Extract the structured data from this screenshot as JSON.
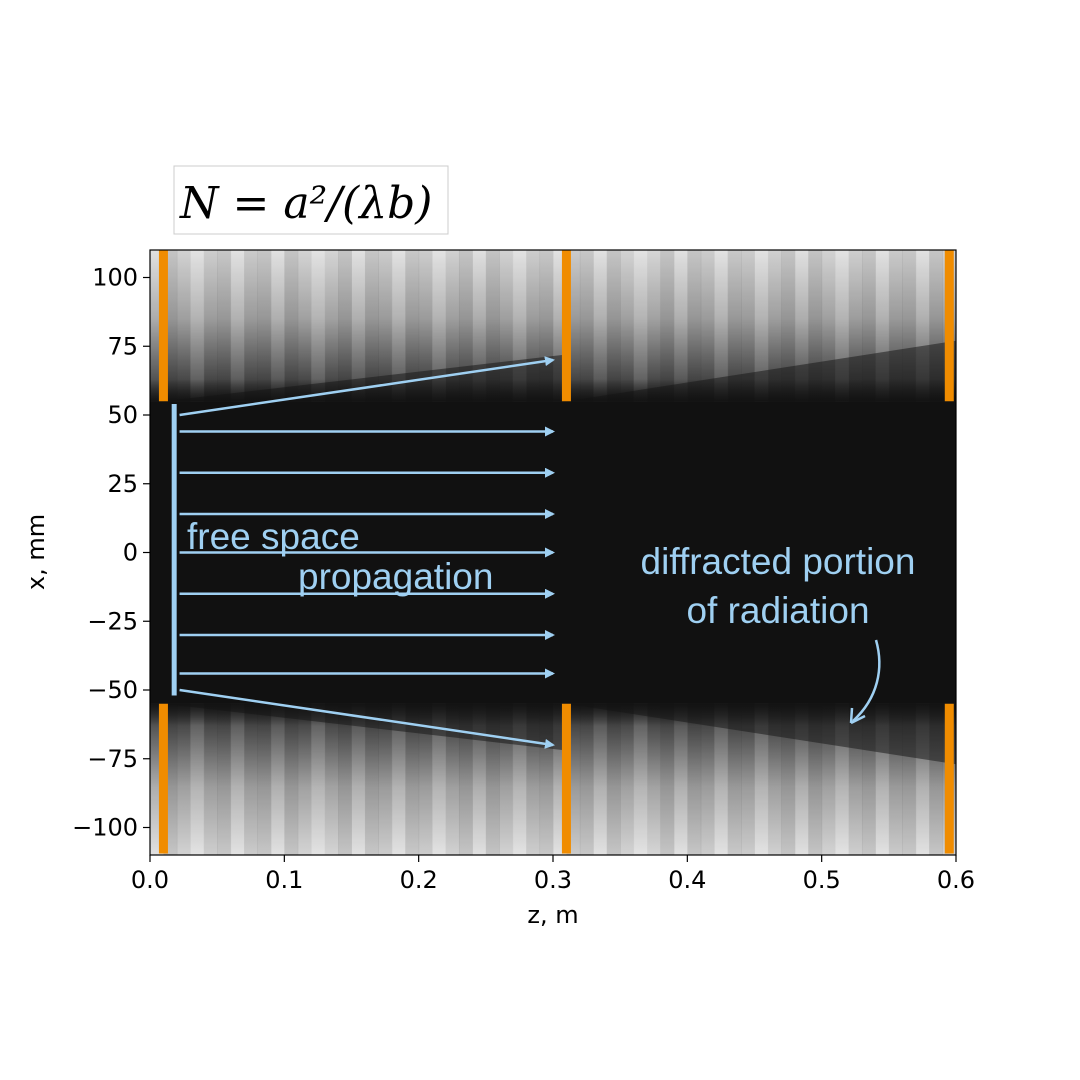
{
  "chart_data": {
    "type": "heatmap",
    "formula_box": "N = a²/(λb)",
    "xlabel": "z, m",
    "ylabel": "x, mm",
    "xlim": [
      0.0,
      0.6
    ],
    "ylim": [
      -110,
      110
    ],
    "xticks": [
      0.0,
      0.1,
      0.2,
      0.3,
      0.4,
      0.5,
      0.6
    ],
    "xtick_labels": [
      "0.0",
      "0.1",
      "0.2",
      "0.3",
      "0.4",
      "0.5",
      "0.6"
    ],
    "yticks": [
      100,
      75,
      50,
      25,
      0,
      -25,
      -50,
      -75,
      -100
    ],
    "ytick_labels": [
      "100",
      "75",
      "50",
      "25",
      "0",
      "−25",
      "−50",
      "−75",
      "−100"
    ],
    "aperture_half_width": 55,
    "mirrors": [
      {
        "z": 0.01,
        "color": "#f08c00"
      },
      {
        "z": 0.31,
        "color": "#f08c00"
      },
      {
        "z": 0.595,
        "color": "#f08c00"
      }
    ],
    "source_bar": {
      "z": 0.018,
      "x_range": [
        -52,
        54
      ],
      "color": "#9fd0f2"
    },
    "propagation_arrows": {
      "z_start": 0.022,
      "z_end": 0.3,
      "x_levels": [
        44,
        29,
        14,
        0,
        -15,
        -30,
        -44
      ],
      "color": "#9fd0f2"
    },
    "diverging_arrows": [
      {
        "from": [
          0.022,
          50
        ],
        "to": [
          0.3,
          70
        ]
      },
      {
        "from": [
          0.022,
          -50
        ],
        "to": [
          0.3,
          -70
        ]
      }
    ],
    "annotations": [
      {
        "lines": [
          "free space",
          "propagation"
        ],
        "color": "#9fd0f2"
      },
      {
        "lines": [
          "diffracted portion",
          "of radiation"
        ],
        "color": "#9fd0f2"
      }
    ],
    "grid": false
  }
}
